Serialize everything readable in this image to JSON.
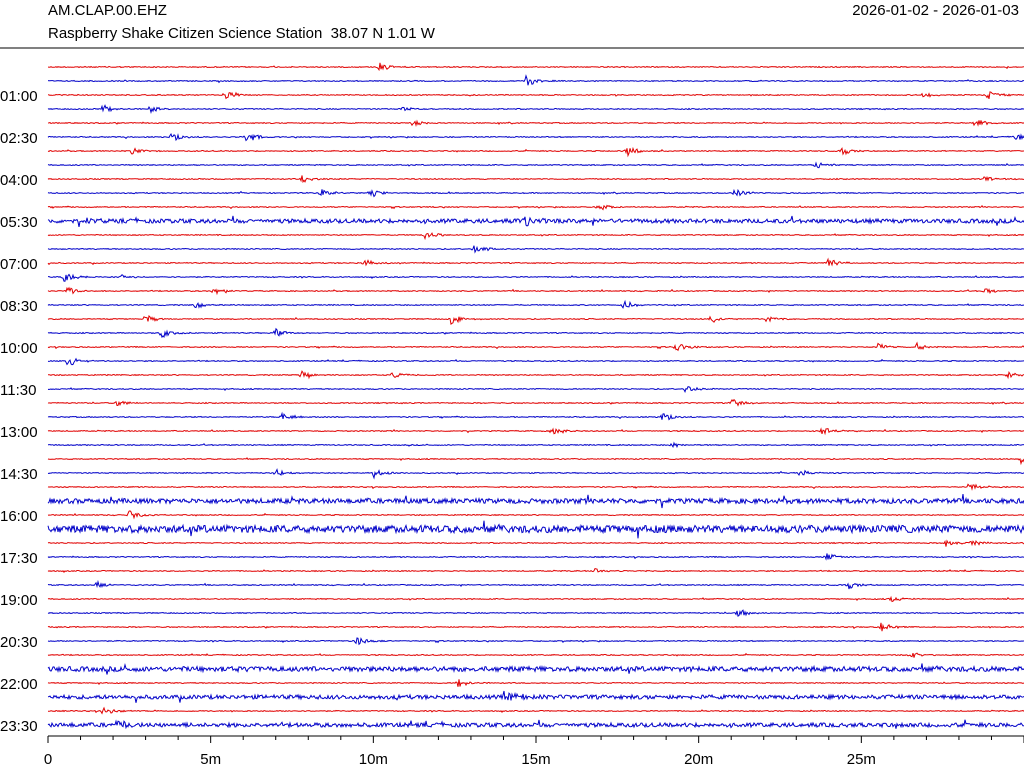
{
  "header": {
    "station_code": "AM.CLAP.00.EHZ",
    "station_description": "Raspberry Shake Citizen Science Station  38.07 N 1.01 W",
    "date_range": "2026-01-02 - 2026-01-03"
  },
  "colors": {
    "trace_a": "#e00000",
    "trace_b": "#0000c8",
    "axis": "#000000"
  },
  "chart_data": {
    "type": "line",
    "title": "",
    "xlabel": "",
    "ylabel": "",
    "x_ticks": [
      "0",
      "5m",
      "10m",
      "15m",
      "20m",
      "25m"
    ],
    "x_tick_minutes": [
      0,
      5,
      10,
      15,
      20,
      25
    ],
    "xlim_minutes": [
      0,
      30
    ],
    "y_labels": [
      "01:00",
      "02:30",
      "04:00",
      "05:30",
      "07:00",
      "08:30",
      "10:00",
      "11:30",
      "13:00",
      "14:30",
      "16:00",
      "17:30",
      "19:00",
      "20:30",
      "22:00",
      "23:30"
    ],
    "rows": 48,
    "row_minutes": 30,
    "label_every_rows": 3,
    "events": [
      {
        "row": 0,
        "min": 10.2,
        "amp": 5
      },
      {
        "row": 1,
        "min": 14.7,
        "amp": 6
      },
      {
        "row": 2,
        "min": 5.5,
        "amp": 5
      },
      {
        "row": 2,
        "min": 28.9,
        "amp": 4
      },
      {
        "row": 2,
        "min": 26.9,
        "amp": 3
      },
      {
        "row": 3,
        "min": 1.7,
        "amp": 5
      },
      {
        "row": 3,
        "min": 3.1,
        "amp": 4
      },
      {
        "row": 3,
        "min": 10.9,
        "amp": 3
      },
      {
        "row": 4,
        "min": 11.2,
        "amp": 3
      },
      {
        "row": 4,
        "min": 28.5,
        "amp": 5
      },
      {
        "row": 5,
        "min": 3.8,
        "amp": 5
      },
      {
        "row": 5,
        "min": 6.1,
        "amp": 6
      },
      {
        "row": 5,
        "min": 29.7,
        "amp": 4
      },
      {
        "row": 6,
        "min": 2.6,
        "amp": 4
      },
      {
        "row": 6,
        "min": 17.8,
        "amp": 5
      },
      {
        "row": 6,
        "min": 24.4,
        "amp": 4
      },
      {
        "row": 7,
        "min": 23.6,
        "amp": 4
      },
      {
        "row": 8,
        "min": 7.8,
        "amp": 4
      },
      {
        "row": 8,
        "min": 28.8,
        "amp": 3
      },
      {
        "row": 9,
        "min": 8.4,
        "amp": 4
      },
      {
        "row": 9,
        "min": 9.9,
        "amp": 5
      },
      {
        "row": 9,
        "min": 21.1,
        "amp": 5
      },
      {
        "row": 10,
        "min": 16.9,
        "amp": 6
      },
      {
        "row": 11,
        "min": 14.6,
        "amp": 6
      },
      {
        "row": 11,
        "min": 1.2,
        "amp": 3
      },
      {
        "row": 12,
        "min": 11.6,
        "amp": 5
      },
      {
        "row": 13,
        "min": 13.1,
        "amp": 5
      },
      {
        "row": 14,
        "min": 9.7,
        "amp": 4
      },
      {
        "row": 14,
        "min": 24.0,
        "amp": 5
      },
      {
        "row": 15,
        "min": 0.5,
        "amp": 6
      },
      {
        "row": 15,
        "min": 2.3,
        "amp": 3
      },
      {
        "row": 16,
        "min": 0.6,
        "amp": 4
      },
      {
        "row": 16,
        "min": 5.1,
        "amp": 4
      },
      {
        "row": 16,
        "min": 28.8,
        "amp": 3
      },
      {
        "row": 17,
        "min": 4.5,
        "amp": 4
      },
      {
        "row": 17,
        "min": 17.7,
        "amp": 5
      },
      {
        "row": 18,
        "min": 3.0,
        "amp": 4
      },
      {
        "row": 18,
        "min": 12.4,
        "amp": 6
      },
      {
        "row": 18,
        "min": 20.4,
        "amp": 4
      },
      {
        "row": 18,
        "min": 22.1,
        "amp": 4
      },
      {
        "row": 19,
        "min": 3.5,
        "amp": 5
      },
      {
        "row": 19,
        "min": 7.0,
        "amp": 4
      },
      {
        "row": 20,
        "min": 19.3,
        "amp": 5
      },
      {
        "row": 20,
        "min": 25.5,
        "amp": 4
      },
      {
        "row": 20,
        "min": 26.7,
        "amp": 4
      },
      {
        "row": 21,
        "min": 0.6,
        "amp": 6
      },
      {
        "row": 22,
        "min": 7.8,
        "amp": 5
      },
      {
        "row": 22,
        "min": 10.6,
        "amp": 4
      },
      {
        "row": 22,
        "min": 29.5,
        "amp": 4
      },
      {
        "row": 23,
        "min": 19.6,
        "amp": 4
      },
      {
        "row": 24,
        "min": 2.1,
        "amp": 4
      },
      {
        "row": 24,
        "min": 21.0,
        "amp": 5
      },
      {
        "row": 25,
        "min": 7.2,
        "amp": 5
      },
      {
        "row": 25,
        "min": 18.9,
        "amp": 5
      },
      {
        "row": 26,
        "min": 15.5,
        "amp": 5
      },
      {
        "row": 26,
        "min": 23.8,
        "amp": 4
      },
      {
        "row": 27,
        "min": 19.2,
        "amp": 3
      },
      {
        "row": 28,
        "min": 29.9,
        "amp": 5
      },
      {
        "row": 29,
        "min": 7.0,
        "amp": 4
      },
      {
        "row": 29,
        "min": 10.0,
        "amp": 5
      },
      {
        "row": 29,
        "min": 23.1,
        "amp": 4
      },
      {
        "row": 30,
        "min": 28.3,
        "amp": 4
      },
      {
        "row": 32,
        "min": 2.5,
        "amp": 5
      },
      {
        "row": 34,
        "min": 27.6,
        "amp": 4
      },
      {
        "row": 34,
        "min": 28.4,
        "amp": 4
      },
      {
        "row": 35,
        "min": 23.9,
        "amp": 5
      },
      {
        "row": 36,
        "min": 16.8,
        "amp": 3
      },
      {
        "row": 37,
        "min": 1.5,
        "amp": 4
      },
      {
        "row": 37,
        "min": 24.6,
        "amp": 4
      },
      {
        "row": 38,
        "min": 25.9,
        "amp": 4
      },
      {
        "row": 39,
        "min": 21.2,
        "amp": 5
      },
      {
        "row": 40,
        "min": 25.6,
        "amp": 5
      },
      {
        "row": 41,
        "min": 9.5,
        "amp": 5
      },
      {
        "row": 42,
        "min": 26.5,
        "amp": 4
      },
      {
        "row": 43,
        "min": 5.3,
        "amp": 4
      },
      {
        "row": 44,
        "min": 12.6,
        "amp": 6
      },
      {
        "row": 45,
        "min": 14.1,
        "amp": 5
      },
      {
        "row": 46,
        "min": 1.7,
        "amp": 5
      },
      {
        "row": 47,
        "min": 2.1,
        "amp": 4
      }
    ],
    "noisy_rows": [
      {
        "row": 11,
        "level": 2.5
      },
      {
        "row": 31,
        "level": 3.0
      },
      {
        "row": 33,
        "level": 4.5
      },
      {
        "row": 43,
        "level": 3.0
      },
      {
        "row": 45,
        "level": 2.5
      },
      {
        "row": 47,
        "level": 2.5
      }
    ]
  }
}
